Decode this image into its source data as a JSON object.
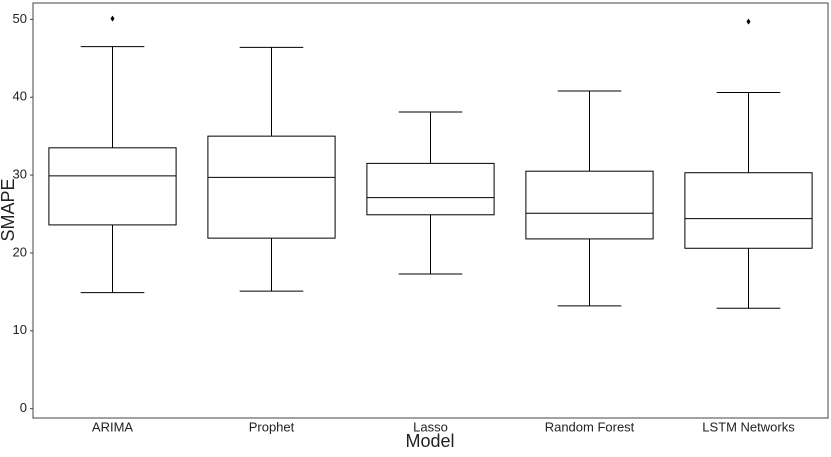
{
  "chart_data": {
    "type": "box",
    "x_label": "Model",
    "y_label": "SMAPE",
    "categories": [
      "ARIMA",
      "Prophet",
      "Lasso",
      "Random Forest",
      "LSTM Networks"
    ],
    "series": [
      {
        "color": "#000000",
        "min": [
          14.9,
          15.1,
          17.3,
          13.2,
          12.9
        ],
        "q1": [
          23.6,
          21.9,
          24.9,
          21.8,
          20.6
        ],
        "median": [
          29.9,
          29.7,
          27.1,
          25.1,
          24.4
        ],
        "q3": [
          33.5,
          35.0,
          31.5,
          30.5,
          30.3
        ],
        "max": [
          46.5,
          46.4,
          38.1,
          40.8,
          40.6
        ],
        "outliers": [
          [
            50.1
          ],
          [],
          [],
          [],
          [
            49.7
          ]
        ]
      }
    ],
    "ylim": [
      -1.2,
      52.1
    ],
    "yticks": [
      0,
      10,
      20,
      30,
      40,
      50
    ],
    "grid": false
  }
}
